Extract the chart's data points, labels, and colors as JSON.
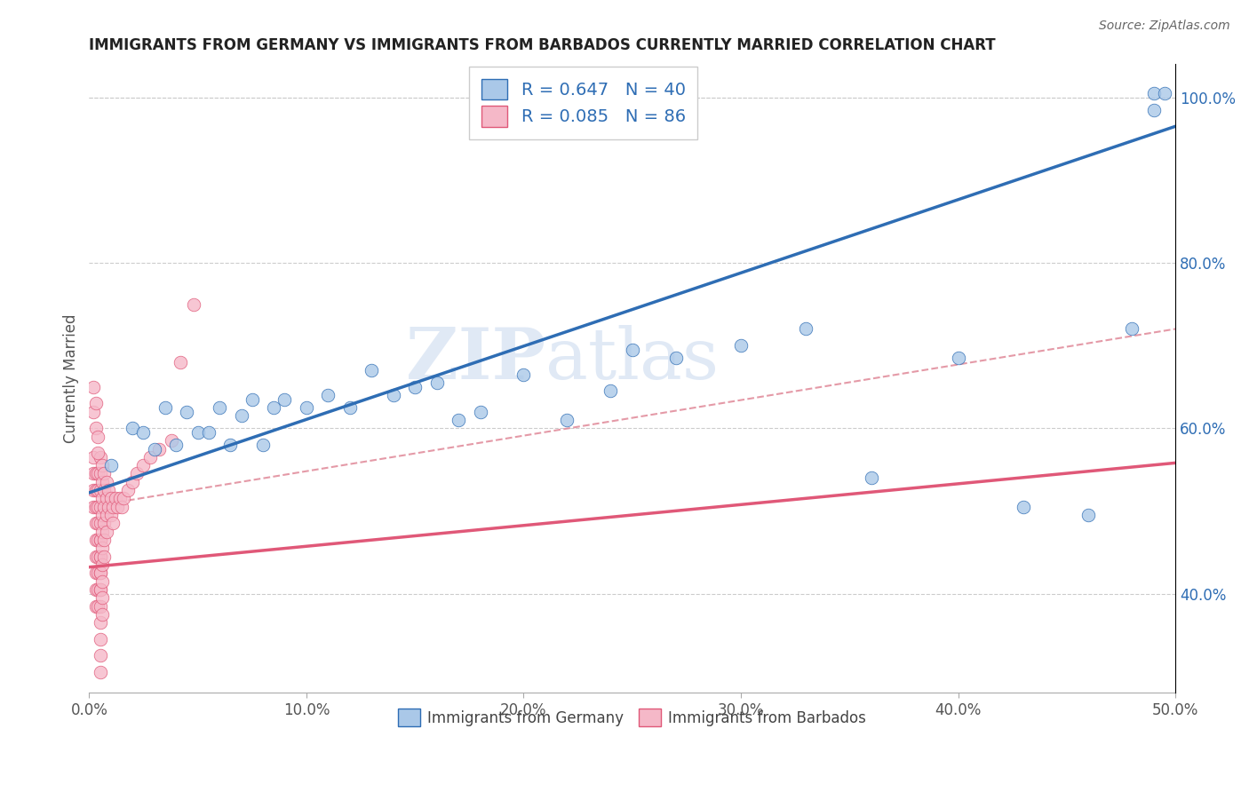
{
  "title": "IMMIGRANTS FROM GERMANY VS IMMIGRANTS FROM BARBADOS CURRENTLY MARRIED CORRELATION CHART",
  "source": "Source: ZipAtlas.com",
  "ylabel": "Currently Married",
  "xlim": [
    0.0,
    0.5
  ],
  "ylim": [
    0.28,
    1.04
  ],
  "xticks": [
    0.0,
    0.1,
    0.2,
    0.3,
    0.4,
    0.5
  ],
  "xticklabels": [
    "0.0%",
    "10.0%",
    "20.0%",
    "30.0%",
    "40.0%",
    "50.0%"
  ],
  "yticks_right": [
    0.4,
    0.6,
    0.8,
    1.0
  ],
  "yticklabels_right": [
    "40.0%",
    "60.0%",
    "80.0%",
    "100.0%"
  ],
  "germany_color": "#aac8e8",
  "barbados_color": "#f5b8c8",
  "germany_R": 0.647,
  "germany_N": 40,
  "barbados_R": 0.085,
  "barbados_N": 86,
  "germany_line_color": "#2e6db4",
  "barbados_line_color": "#e05878",
  "dash_line_color": "#e08898",
  "background_color": "#ffffff",
  "watermark_text": "ZIP",
  "watermark_text2": "atlas",
  "legend_label_germany": "Immigrants from Germany",
  "legend_label_barbados": "Immigrants from Barbados",
  "germany_line_x0": 0.0,
  "germany_line_y0": 0.522,
  "germany_line_x1": 0.5,
  "germany_line_y1": 0.965,
  "barbados_line_x0": 0.0,
  "barbados_line_y0": 0.432,
  "barbados_line_x1": 0.5,
  "barbados_line_y1": 0.558,
  "dash_line_x0": 0.0,
  "dash_line_y0": 0.505,
  "dash_line_x1": 0.5,
  "dash_line_y1": 0.72,
  "germany_scatter_x": [
    0.01,
    0.02,
    0.025,
    0.03,
    0.035,
    0.04,
    0.045,
    0.05,
    0.055,
    0.06,
    0.065,
    0.07,
    0.075,
    0.08,
    0.085,
    0.09,
    0.1,
    0.11,
    0.12,
    0.13,
    0.14,
    0.15,
    0.16,
    0.17,
    0.18,
    0.2,
    0.22,
    0.24,
    0.25,
    0.27,
    0.3,
    0.33,
    0.36,
    0.4,
    0.43,
    0.46,
    0.48,
    0.49,
    0.49,
    0.495
  ],
  "germany_scatter_y": [
    0.555,
    0.6,
    0.595,
    0.575,
    0.625,
    0.58,
    0.62,
    0.595,
    0.595,
    0.625,
    0.58,
    0.615,
    0.635,
    0.58,
    0.625,
    0.635,
    0.625,
    0.64,
    0.625,
    0.67,
    0.64,
    0.65,
    0.655,
    0.61,
    0.62,
    0.665,
    0.61,
    0.645,
    0.695,
    0.685,
    0.7,
    0.72,
    0.54,
    0.685,
    0.505,
    0.495,
    0.72,
    0.985,
    1.005,
    1.005
  ],
  "barbados_scatter_x": [
    0.002,
    0.002,
    0.002,
    0.002,
    0.003,
    0.003,
    0.003,
    0.003,
    0.003,
    0.003,
    0.003,
    0.003,
    0.003,
    0.004,
    0.004,
    0.004,
    0.004,
    0.004,
    0.004,
    0.004,
    0.004,
    0.004,
    0.005,
    0.005,
    0.005,
    0.005,
    0.005,
    0.005,
    0.005,
    0.005,
    0.005,
    0.005,
    0.005,
    0.005,
    0.005,
    0.005,
    0.005,
    0.005,
    0.005,
    0.005,
    0.006,
    0.006,
    0.006,
    0.006,
    0.006,
    0.006,
    0.006,
    0.006,
    0.006,
    0.006,
    0.007,
    0.007,
    0.007,
    0.007,
    0.007,
    0.007,
    0.008,
    0.008,
    0.008,
    0.008,
    0.009,
    0.009,
    0.01,
    0.01,
    0.011,
    0.011,
    0.012,
    0.013,
    0.014,
    0.015,
    0.016,
    0.018,
    0.02,
    0.022,
    0.025,
    0.028,
    0.032,
    0.038,
    0.042,
    0.048,
    0.002,
    0.002,
    0.003,
    0.003,
    0.004,
    0.004
  ],
  "barbados_scatter_y": [
    0.565,
    0.545,
    0.525,
    0.505,
    0.545,
    0.525,
    0.505,
    0.485,
    0.465,
    0.445,
    0.425,
    0.405,
    0.385,
    0.545,
    0.525,
    0.505,
    0.485,
    0.465,
    0.445,
    0.425,
    0.405,
    0.385,
    0.565,
    0.545,
    0.525,
    0.505,
    0.485,
    0.465,
    0.445,
    0.425,
    0.405,
    0.385,
    0.365,
    0.345,
    0.325,
    0.305,
    0.465,
    0.445,
    0.425,
    0.405,
    0.555,
    0.535,
    0.515,
    0.495,
    0.475,
    0.455,
    0.435,
    0.415,
    0.395,
    0.375,
    0.545,
    0.525,
    0.505,
    0.485,
    0.465,
    0.445,
    0.535,
    0.515,
    0.495,
    0.475,
    0.525,
    0.505,
    0.515,
    0.495,
    0.505,
    0.485,
    0.515,
    0.505,
    0.515,
    0.505,
    0.515,
    0.525,
    0.535,
    0.545,
    0.555,
    0.565,
    0.575,
    0.585,
    0.68,
    0.75,
    0.62,
    0.65,
    0.6,
    0.63,
    0.57,
    0.59
  ]
}
